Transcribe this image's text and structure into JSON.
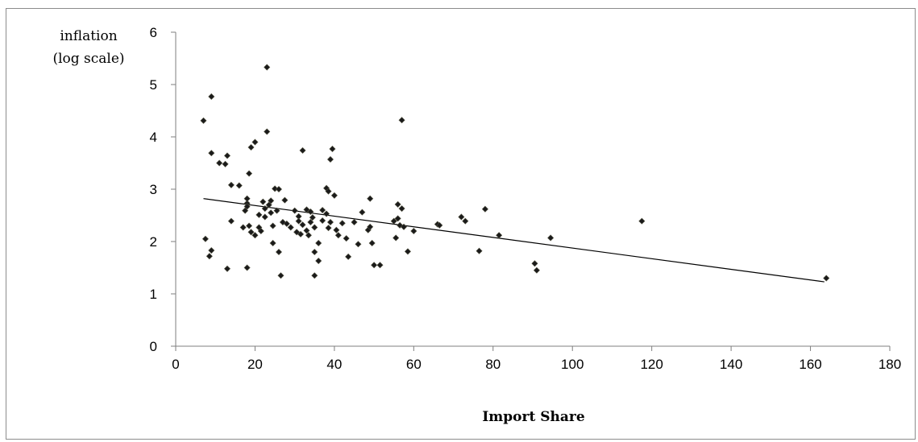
{
  "chart_data": {
    "type": "scatter",
    "title": "",
    "xlabel": "Import Share",
    "ylabel_lines": [
      "inflation",
      "(log scale)"
    ],
    "xlim": [
      0,
      180
    ],
    "ylim": [
      0,
      6
    ],
    "x_ticks": [
      "0",
      "20",
      "40",
      "60",
      "80",
      "100",
      "120",
      "140",
      "160",
      "180"
    ],
    "y_ticks": [
      "0",
      "1",
      "2",
      "3",
      "4",
      "5",
      "6"
    ],
    "grid": false,
    "legend": "none",
    "marker_color": "#1a1a1a",
    "trendline": {
      "x": [
        7,
        163.5
      ],
      "y": [
        2.82,
        1.23
      ]
    },
    "points": [
      [
        7,
        4.31
      ],
      [
        9,
        4.77
      ],
      [
        7.5,
        2.05
      ],
      [
        8.5,
        1.72
      ],
      [
        9,
        1.83
      ],
      [
        9,
        3.69
      ],
      [
        11,
        3.5
      ],
      [
        12.5,
        3.48
      ],
      [
        13,
        3.64
      ],
      [
        13,
        1.48
      ],
      [
        14,
        3.08
      ],
      [
        14,
        2.39
      ],
      [
        16,
        3.07
      ],
      [
        17,
        2.27
      ],
      [
        17.5,
        2.59
      ],
      [
        18,
        2.73
      ],
      [
        18,
        2.82
      ],
      [
        18,
        2.67
      ],
      [
        18,
        1.5
      ],
      [
        18.5,
        3.3
      ],
      [
        18.5,
        2.3
      ],
      [
        19,
        2.18
      ],
      [
        19,
        3.8
      ],
      [
        20,
        3.9
      ],
      [
        20,
        2.12
      ],
      [
        21,
        2.27
      ],
      [
        21,
        2.51
      ],
      [
        21.5,
        2.2
      ],
      [
        22,
        2.76
      ],
      [
        22.5,
        2.63
      ],
      [
        22.5,
        2.47
      ],
      [
        23,
        5.33
      ],
      [
        23,
        4.1
      ],
      [
        23.5,
        2.7
      ],
      [
        24,
        2.78
      ],
      [
        24,
        2.55
      ],
      [
        24.5,
        2.3
      ],
      [
        24.5,
        1.97
      ],
      [
        25,
        3.01
      ],
      [
        25.5,
        2.59
      ],
      [
        26,
        3.0
      ],
      [
        26,
        1.8
      ],
      [
        26.5,
        1.35
      ],
      [
        27,
        2.37
      ],
      [
        27.5,
        2.79
      ],
      [
        28,
        2.34
      ],
      [
        29,
        2.27
      ],
      [
        30,
        2.59
      ],
      [
        30.5,
        2.18
      ],
      [
        31,
        2.48
      ],
      [
        31,
        2.39
      ],
      [
        31.5,
        2.14
      ],
      [
        32,
        3.74
      ],
      [
        32,
        2.32
      ],
      [
        33,
        2.61
      ],
      [
        33,
        2.21
      ],
      [
        33.5,
        2.12
      ],
      [
        34,
        2.57
      ],
      [
        34,
        2.37
      ],
      [
        34.5,
        2.46
      ],
      [
        35,
        2.27
      ],
      [
        35,
        1.8
      ],
      [
        35,
        1.35
      ],
      [
        36,
        1.97
      ],
      [
        36,
        1.63
      ],
      [
        37,
        2.6
      ],
      [
        37,
        2.4
      ],
      [
        38,
        3.02
      ],
      [
        38,
        2.53
      ],
      [
        38.5,
        2.26
      ],
      [
        38.5,
        2.96
      ],
      [
        39,
        3.57
      ],
      [
        39,
        2.37
      ],
      [
        39.5,
        3.77
      ],
      [
        40,
        2.88
      ],
      [
        40.5,
        2.22
      ],
      [
        41,
        2.12
      ],
      [
        42,
        2.35
      ],
      [
        43,
        2.06
      ],
      [
        43.5,
        1.71
      ],
      [
        45,
        2.37
      ],
      [
        46,
        1.95
      ],
      [
        47,
        2.56
      ],
      [
        48.5,
        2.22
      ],
      [
        49,
        2.82
      ],
      [
        49,
        2.28
      ],
      [
        49.5,
        1.97
      ],
      [
        50,
        1.55
      ],
      [
        51.5,
        1.55
      ],
      [
        55,
        2.39
      ],
      [
        55.5,
        2.07
      ],
      [
        56,
        2.71
      ],
      [
        56,
        2.44
      ],
      [
        56.5,
        2.31
      ],
      [
        57,
        4.32
      ],
      [
        57,
        2.63
      ],
      [
        57.5,
        2.28
      ],
      [
        58.5,
        1.81
      ],
      [
        60,
        2.2
      ],
      [
        66,
        2.33
      ],
      [
        66.5,
        2.31
      ],
      [
        72,
        2.47
      ],
      [
        73,
        2.39
      ],
      [
        76.5,
        1.82
      ],
      [
        78,
        2.62
      ],
      [
        81.5,
        2.12
      ],
      [
        90.5,
        1.58
      ],
      [
        91,
        1.45
      ],
      [
        94.5,
        2.07
      ],
      [
        117.5,
        2.39
      ],
      [
        164,
        1.3
      ]
    ]
  }
}
